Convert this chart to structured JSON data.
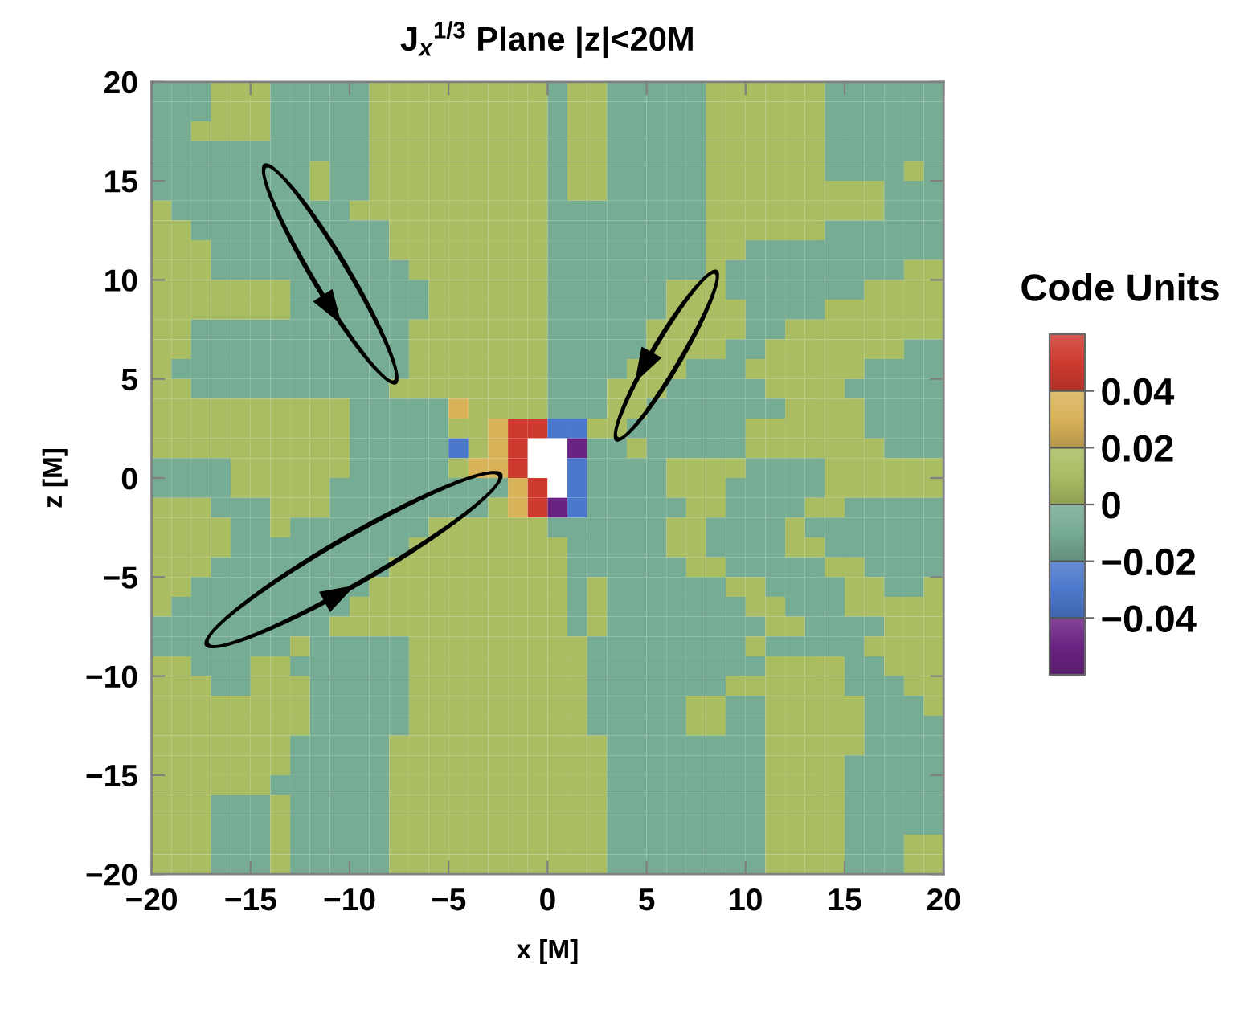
{
  "chart_data": {
    "type": "heatmap",
    "title": "J$_{x}$$^{1/3}$ Plane |z|<20M",
    "xlabel": "x [M]",
    "ylabel": "z [M]",
    "clabel": "Code Units",
    "x": [
      -19.5,
      -18.5,
      -17.5,
      -16.5,
      -15.5,
      -14.5,
      -13.5,
      -12.5,
      -11.5,
      -10.5,
      -9.5,
      -8.5,
      -7.5,
      -6.5,
      -5.5,
      -4.5,
      -3.5,
      -2.5,
      -1.5,
      -0.5,
      0.5,
      1.5,
      2.5,
      3.5,
      4.5,
      5.5,
      6.5,
      7.5,
      8.5,
      9.5,
      10.5,
      11.5,
      12.5,
      13.5,
      14.5,
      15.5,
      16.5,
      17.5,
      18.5,
      19.5
    ],
    "y": [
      19.5,
      18.5,
      17.5,
      16.5,
      15.5,
      14.5,
      13.5,
      12.5,
      11.5,
      10.5,
      9.5,
      8.5,
      7.5,
      6.5,
      5.5,
      4.5,
      3.5,
      2.5,
      1.5,
      0.5,
      -0.5,
      -1.5,
      -2.5,
      -3.5,
      -4.5,
      -5.5,
      -6.5,
      -7.5,
      -8.5,
      -9.5,
      -10.5,
      -11.5,
      -12.5,
      -13.5,
      -14.5,
      -15.5,
      -16.5,
      -17.5,
      -18.5,
      -19.5
    ],
    "xlim": [
      -20,
      20
    ],
    "ylim": [
      -20,
      20
    ],
    "xticks": [
      {
        "value": -20,
        "label": "−20"
      },
      {
        "value": -15,
        "label": "−15"
      },
      {
        "value": -10,
        "label": "−10"
      },
      {
        "value": -5,
        "label": "−5"
      },
      0,
      5,
      10,
      15,
      20
    ],
    "yticks": [
      {
        "value": -20,
        "label": "−20"
      },
      {
        "value": -15,
        "label": "−15"
      },
      {
        "value": -10,
        "label": "−10"
      },
      {
        "value": -5,
        "label": "−5"
      },
      0,
      5,
      10,
      15,
      20
    ],
    "clim": [
      -0.06,
      0.06
    ],
    "cticks": [
      0.04,
      0.02,
      0,
      {
        "value": -0.02,
        "label": "−0.02"
      },
      {
        "value": -0.04,
        "label": "−0.04"
      }
    ],
    "cells": [
      [
        -0.01,
        -0.01,
        -0.01,
        0.01,
        0.01,
        0.01,
        -0.01,
        -0.01,
        -0.01,
        -0.01,
        -0.01,
        0.01,
        0.01,
        0.01,
        0.01,
        0.01,
        0.01,
        0.01,
        0.01,
        0.01,
        -0.01,
        0.01,
        0.01,
        -0.01,
        -0.01,
        -0.01,
        -0.01,
        -0.01,
        0.01,
        0.01,
        0.01,
        0.01,
        0.01,
        0.01,
        -0.01,
        -0.01,
        -0.01,
        -0.01,
        -0.01,
        -0.01
      ],
      [
        -0.01,
        -0.01,
        -0.01,
        0.01,
        0.01,
        0.01,
        -0.01,
        -0.01,
        -0.01,
        -0.01,
        -0.01,
        0.01,
        0.01,
        0.01,
        0.01,
        0.01,
        0.01,
        0.01,
        0.01,
        0.01,
        -0.01,
        0.01,
        0.01,
        -0.01,
        -0.01,
        -0.01,
        -0.01,
        -0.01,
        0.01,
        0.01,
        0.01,
        0.01,
        0.01,
        0.01,
        -0.01,
        -0.01,
        -0.01,
        -0.01,
        -0.01,
        -0.01
      ],
      [
        -0.01,
        -0.01,
        0.01,
        0.01,
        0.01,
        0.01,
        -0.01,
        -0.01,
        -0.01,
        -0.01,
        -0.01,
        0.01,
        0.01,
        0.01,
        0.01,
        0.01,
        0.01,
        0.01,
        0.01,
        0.01,
        -0.01,
        0.01,
        0.01,
        -0.01,
        -0.01,
        -0.01,
        -0.01,
        -0.01,
        0.01,
        0.01,
        0.01,
        0.01,
        0.01,
        0.01,
        -0.01,
        -0.01,
        -0.01,
        -0.01,
        -0.01,
        -0.01
      ],
      [
        -0.01,
        -0.01,
        -0.01,
        -0.01,
        -0.01,
        -0.01,
        -0.01,
        -0.01,
        -0.01,
        -0.01,
        -0.01,
        0.01,
        0.01,
        0.01,
        0.01,
        0.01,
        0.01,
        0.01,
        0.01,
        0.01,
        -0.01,
        0.01,
        0.01,
        -0.01,
        -0.01,
        -0.01,
        -0.01,
        -0.01,
        0.01,
        0.01,
        0.01,
        0.01,
        0.01,
        0.01,
        -0.01,
        -0.01,
        -0.01,
        -0.01,
        -0.01,
        -0.01
      ],
      [
        -0.01,
        -0.01,
        -0.01,
        -0.01,
        -0.01,
        -0.01,
        -0.01,
        -0.01,
        0.01,
        -0.01,
        -0.01,
        0.01,
        0.01,
        0.01,
        0.01,
        0.01,
        0.01,
        0.01,
        0.01,
        0.01,
        -0.01,
        0.01,
        0.01,
        -0.01,
        -0.01,
        -0.01,
        -0.01,
        -0.01,
        0.01,
        0.01,
        0.01,
        0.01,
        0.01,
        0.01,
        -0.01,
        -0.01,
        -0.01,
        -0.01,
        0.01,
        -0.01
      ],
      [
        -0.01,
        -0.01,
        -0.01,
        -0.01,
        -0.01,
        -0.01,
        -0.01,
        -0.01,
        0.01,
        -0.01,
        -0.01,
        0.01,
        0.01,
        0.01,
        0.01,
        0.01,
        0.01,
        0.01,
        0.01,
        0.01,
        -0.01,
        0.01,
        0.01,
        -0.01,
        -0.01,
        -0.01,
        -0.01,
        -0.01,
        0.01,
        0.01,
        0.01,
        0.01,
        0.01,
        0.01,
        0.01,
        0.01,
        0.01,
        -0.01,
        -0.01,
        -0.01
      ],
      [
        0.01,
        -0.01,
        -0.01,
        -0.01,
        -0.01,
        -0.01,
        -0.01,
        -0.01,
        -0.01,
        -0.01,
        0.01,
        0.01,
        0.01,
        0.01,
        0.01,
        0.01,
        0.01,
        0.01,
        0.01,
        0.01,
        -0.01,
        -0.01,
        -0.01,
        -0.01,
        -0.01,
        -0.01,
        -0.01,
        -0.01,
        0.01,
        0.01,
        0.01,
        0.01,
        0.01,
        0.01,
        0.01,
        0.01,
        0.01,
        -0.01,
        -0.01,
        -0.01
      ],
      [
        0.01,
        0.01,
        -0.01,
        -0.01,
        -0.01,
        -0.01,
        -0.01,
        -0.01,
        -0.01,
        -0.01,
        -0.01,
        -0.01,
        0.01,
        0.01,
        0.01,
        0.01,
        0.01,
        0.01,
        0.01,
        0.01,
        -0.01,
        -0.01,
        -0.01,
        -0.01,
        -0.01,
        -0.01,
        -0.01,
        -0.01,
        0.01,
        0.01,
        0.01,
        0.01,
        0.01,
        0.01,
        -0.01,
        -0.01,
        -0.01,
        -0.01,
        -0.01,
        -0.01
      ],
      [
        0.01,
        0.01,
        0.01,
        -0.01,
        -0.01,
        -0.01,
        -0.01,
        -0.01,
        -0.01,
        -0.01,
        -0.01,
        -0.01,
        0.01,
        0.01,
        0.01,
        0.01,
        0.01,
        0.01,
        0.01,
        0.01,
        -0.01,
        -0.01,
        -0.01,
        -0.01,
        -0.01,
        -0.01,
        -0.01,
        -0.01,
        0.01,
        0.01,
        -0.01,
        -0.01,
        -0.01,
        -0.01,
        -0.01,
        -0.01,
        -0.01,
        -0.01,
        -0.01,
        -0.01
      ],
      [
        0.01,
        0.01,
        0.01,
        -0.01,
        -0.01,
        -0.01,
        -0.01,
        -0.01,
        -0.01,
        -0.01,
        -0.01,
        -0.01,
        -0.01,
        0.01,
        0.01,
        0.01,
        0.01,
        0.01,
        0.01,
        0.01,
        -0.01,
        -0.01,
        -0.01,
        -0.01,
        -0.01,
        -0.01,
        -0.01,
        -0.01,
        0.01,
        -0.01,
        -0.01,
        -0.01,
        -0.01,
        -0.01,
        -0.01,
        -0.01,
        -0.01,
        -0.01,
        0.01,
        0.01
      ],
      [
        0.01,
        0.01,
        0.01,
        0.01,
        0.01,
        0.01,
        0.01,
        -0.01,
        -0.01,
        -0.01,
        -0.01,
        -0.01,
        -0.01,
        -0.01,
        0.01,
        0.01,
        0.01,
        0.01,
        0.01,
        0.01,
        -0.01,
        -0.01,
        -0.01,
        -0.01,
        -0.01,
        -0.01,
        0.01,
        0.01,
        0.01,
        -0.01,
        -0.01,
        -0.01,
        -0.01,
        -0.01,
        -0.01,
        -0.01,
        0.01,
        0.01,
        0.01,
        0.01
      ],
      [
        0.01,
        0.01,
        0.01,
        0.01,
        0.01,
        0.01,
        0.01,
        -0.01,
        -0.01,
        -0.01,
        -0.01,
        -0.01,
        -0.01,
        -0.01,
        0.01,
        0.01,
        0.01,
        0.01,
        0.01,
        0.01,
        -0.01,
        -0.01,
        -0.01,
        -0.01,
        -0.01,
        -0.01,
        0.01,
        0.01,
        0.01,
        0.01,
        -0.01,
        -0.01,
        -0.01,
        -0.01,
        0.01,
        0.01,
        0.01,
        0.01,
        0.01,
        0.01
      ],
      [
        0.01,
        0.01,
        -0.01,
        -0.01,
        -0.01,
        -0.01,
        -0.01,
        -0.01,
        -0.01,
        -0.01,
        -0.01,
        -0.01,
        -0.01,
        0.01,
        0.01,
        0.01,
        0.01,
        0.01,
        0.01,
        0.01,
        -0.01,
        -0.01,
        -0.01,
        -0.01,
        -0.01,
        0.01,
        0.01,
        0.01,
        0.01,
        0.01,
        -0.01,
        -0.01,
        0.01,
        0.01,
        0.01,
        0.01,
        0.01,
        0.01,
        0.01,
        0.01
      ],
      [
        0.01,
        0.01,
        -0.01,
        -0.01,
        -0.01,
        -0.01,
        -0.01,
        -0.01,
        -0.01,
        -0.01,
        -0.01,
        -0.01,
        -0.01,
        0.01,
        0.01,
        0.01,
        0.01,
        0.01,
        0.01,
        0.01,
        -0.01,
        -0.01,
        -0.01,
        -0.01,
        -0.01,
        0.01,
        0.01,
        0.01,
        0.01,
        -0.01,
        -0.01,
        0.01,
        0.01,
        0.01,
        0.01,
        0.01,
        0.01,
        0.01,
        -0.01,
        -0.01
      ],
      [
        0.01,
        -0.01,
        -0.01,
        -0.01,
        -0.01,
        -0.01,
        -0.01,
        -0.01,
        -0.01,
        -0.01,
        -0.01,
        -0.01,
        -0.01,
        0.01,
        0.01,
        0.01,
        0.01,
        0.01,
        0.01,
        0.01,
        -0.01,
        -0.01,
        -0.01,
        -0.01,
        0.01,
        0.01,
        0.01,
        -0.01,
        -0.01,
        -0.01,
        0.01,
        0.01,
        0.01,
        0.01,
        0.01,
        0.01,
        -0.01,
        -0.01,
        -0.01,
        -0.01
      ],
      [
        0.01,
        0.01,
        -0.01,
        -0.01,
        -0.01,
        -0.01,
        -0.01,
        -0.01,
        -0.01,
        -0.01,
        -0.01,
        -0.01,
        0.01,
        0.01,
        0.01,
        0.01,
        0.01,
        0.01,
        0.01,
        0.01,
        -0.01,
        -0.01,
        -0.01,
        0.01,
        0.01,
        0.01,
        -0.01,
        -0.01,
        -0.01,
        -0.01,
        -0.01,
        0.01,
        0.01,
        0.01,
        0.01,
        -0.01,
        -0.01,
        -0.01,
        -0.01,
        -0.01
      ],
      [
        0.01,
        0.01,
        0.01,
        0.01,
        0.01,
        0.01,
        0.01,
        0.01,
        0.01,
        0.01,
        -0.01,
        -0.01,
        -0.01,
        -0.01,
        -0.01,
        0.03,
        0.01,
        0.01,
        0.01,
        0.01,
        -0.01,
        -0.01,
        -0.01,
        0.01,
        0.01,
        -0.01,
        -0.01,
        -0.01,
        -0.01,
        -0.01,
        -0.01,
        -0.01,
        0.01,
        0.01,
        0.01,
        0.01,
        -0.01,
        -0.01,
        -0.01,
        -0.01
      ],
      [
        0.01,
        0.01,
        0.01,
        0.01,
        0.01,
        0.01,
        0.01,
        0.01,
        0.01,
        0.01,
        -0.01,
        -0.01,
        -0.01,
        -0.01,
        -0.01,
        0.01,
        0.01,
        0.03,
        0.05,
        0.05,
        -0.03,
        -0.03,
        0.01,
        0.01,
        -0.01,
        -0.01,
        -0.01,
        -0.01,
        -0.01,
        -0.01,
        0.01,
        0.01,
        0.01,
        0.01,
        0.01,
        0.01,
        -0.01,
        -0.01,
        -0.01,
        -0.01
      ],
      [
        0.01,
        0.01,
        0.01,
        0.01,
        0.01,
        0.01,
        0.01,
        0.01,
        0.01,
        0.01,
        -0.01,
        -0.01,
        -0.01,
        -0.01,
        -0.01,
        -0.03,
        0.01,
        0.03,
        0.05,
        null,
        null,
        -0.05,
        -0.01,
        -0.01,
        0.01,
        -0.01,
        -0.01,
        -0.01,
        -0.01,
        -0.01,
        0.01,
        0.01,
        0.01,
        0.01,
        0.01,
        0.01,
        0.01,
        -0.01,
        -0.01,
        -0.01
      ],
      [
        -0.01,
        -0.01,
        -0.01,
        -0.01,
        0.01,
        0.01,
        0.01,
        0.01,
        0.01,
        0.01,
        -0.01,
        -0.01,
        -0.01,
        -0.01,
        -0.01,
        0.01,
        0.03,
        0.03,
        0.05,
        null,
        null,
        -0.03,
        -0.01,
        -0.01,
        -0.01,
        -0.01,
        0.01,
        0.01,
        0.01,
        0.01,
        -0.01,
        -0.01,
        -0.01,
        -0.01,
        0.01,
        0.01,
        0.01,
        0.01,
        0.01,
        0.01
      ],
      [
        -0.01,
        -0.01,
        -0.01,
        -0.01,
        0.01,
        0.01,
        0.01,
        0.01,
        0.01,
        -0.01,
        -0.01,
        -0.01,
        -0.01,
        -0.01,
        -0.01,
        -0.01,
        -0.01,
        -0.01,
        0.03,
        0.05,
        null,
        -0.03,
        -0.01,
        -0.01,
        -0.01,
        -0.01,
        0.01,
        0.01,
        0.01,
        -0.01,
        -0.01,
        -0.01,
        -0.01,
        -0.01,
        0.01,
        0.01,
        0.01,
        0.01,
        0.01,
        0.01
      ],
      [
        0.01,
        0.01,
        0.01,
        -0.01,
        -0.01,
        -0.01,
        0.01,
        0.01,
        0.01,
        -0.01,
        -0.01,
        -0.01,
        -0.01,
        -0.01,
        -0.01,
        -0.01,
        -0.01,
        0.01,
        0.03,
        0.05,
        -0.05,
        -0.03,
        -0.01,
        -0.01,
        -0.01,
        -0.01,
        -0.01,
        0.01,
        0.01,
        -0.01,
        -0.01,
        -0.01,
        -0.01,
        0.01,
        0.01,
        -0.01,
        -0.01,
        -0.01,
        -0.01,
        -0.01
      ],
      [
        0.01,
        0.01,
        0.01,
        0.01,
        -0.01,
        -0.01,
        0.01,
        -0.01,
        -0.01,
        -0.01,
        -0.01,
        -0.01,
        -0.01,
        -0.01,
        0.01,
        0.01,
        0.01,
        0.01,
        0.01,
        0.01,
        -0.01,
        -0.01,
        -0.01,
        -0.01,
        -0.01,
        -0.01,
        0.01,
        0.01,
        -0.01,
        -0.01,
        -0.01,
        -0.01,
        0.01,
        -0.01,
        -0.01,
        -0.01,
        -0.01,
        -0.01,
        -0.01,
        -0.01
      ],
      [
        0.01,
        0.01,
        0.01,
        0.01,
        -0.01,
        -0.01,
        -0.01,
        -0.01,
        -0.01,
        -0.01,
        -0.01,
        -0.01,
        -0.01,
        0.01,
        0.01,
        0.01,
        0.01,
        0.01,
        0.01,
        0.01,
        0.01,
        -0.01,
        -0.01,
        -0.01,
        -0.01,
        -0.01,
        0.01,
        0.01,
        -0.01,
        -0.01,
        -0.01,
        -0.01,
        0.01,
        0.01,
        -0.01,
        -0.01,
        -0.01,
        -0.01,
        -0.01,
        -0.01
      ],
      [
        0.01,
        0.01,
        0.01,
        -0.01,
        -0.01,
        -0.01,
        -0.01,
        -0.01,
        -0.01,
        -0.01,
        -0.01,
        -0.01,
        0.01,
        0.01,
        0.01,
        0.01,
        0.01,
        0.01,
        0.01,
        0.01,
        0.01,
        -0.01,
        -0.01,
        -0.01,
        -0.01,
        -0.01,
        -0.01,
        0.01,
        0.01,
        -0.01,
        -0.01,
        -0.01,
        -0.01,
        -0.01,
        0.01,
        0.01,
        -0.01,
        -0.01,
        -0.01,
        -0.01
      ],
      [
        0.01,
        0.01,
        -0.01,
        -0.01,
        -0.01,
        -0.01,
        -0.01,
        -0.01,
        -0.01,
        -0.01,
        -0.01,
        0.01,
        0.01,
        0.01,
        0.01,
        0.01,
        0.01,
        0.01,
        0.01,
        0.01,
        0.01,
        -0.01,
        0.01,
        -0.01,
        -0.01,
        -0.01,
        -0.01,
        -0.01,
        -0.01,
        0.01,
        0.01,
        -0.01,
        -0.01,
        -0.01,
        -0.01,
        0.01,
        0.01,
        -0.01,
        -0.01,
        0.01
      ],
      [
        0.01,
        -0.01,
        -0.01,
        -0.01,
        -0.01,
        -0.01,
        -0.01,
        -0.01,
        -0.01,
        -0.01,
        0.01,
        0.01,
        0.01,
        0.01,
        0.01,
        0.01,
        0.01,
        0.01,
        0.01,
        0.01,
        0.01,
        -0.01,
        0.01,
        -0.01,
        -0.01,
        -0.01,
        -0.01,
        -0.01,
        -0.01,
        -0.01,
        0.01,
        0.01,
        -0.01,
        -0.01,
        -0.01,
        0.01,
        0.01,
        0.01,
        0.01,
        0.01
      ],
      [
        -0.01,
        -0.01,
        -0.01,
        -0.01,
        -0.01,
        -0.01,
        -0.01,
        -0.01,
        -0.01,
        0.01,
        0.01,
        0.01,
        0.01,
        0.01,
        0.01,
        0.01,
        0.01,
        0.01,
        0.01,
        0.01,
        0.01,
        -0.01,
        0.01,
        -0.01,
        -0.01,
        -0.01,
        -0.01,
        -0.01,
        -0.01,
        -0.01,
        -0.01,
        0.01,
        0.01,
        -0.01,
        -0.01,
        -0.01,
        -0.01,
        0.01,
        0.01,
        0.01
      ],
      [
        -0.01,
        -0.01,
        -0.01,
        -0.01,
        -0.01,
        -0.01,
        -0.01,
        0.01,
        -0.01,
        -0.01,
        -0.01,
        -0.01,
        -0.01,
        0.01,
        0.01,
        0.01,
        0.01,
        0.01,
        0.01,
        0.01,
        0.01,
        0.01,
        -0.01,
        -0.01,
        -0.01,
        -0.01,
        -0.01,
        -0.01,
        -0.01,
        -0.01,
        0.01,
        -0.01,
        -0.01,
        -0.01,
        -0.01,
        -0.01,
        0.01,
        0.01,
        0.01,
        0.01
      ],
      [
        0.01,
        0.01,
        -0.01,
        -0.01,
        -0.01,
        0.01,
        0.01,
        -0.01,
        -0.01,
        -0.01,
        -0.01,
        -0.01,
        -0.01,
        0.01,
        0.01,
        0.01,
        0.01,
        0.01,
        0.01,
        0.01,
        0.01,
        0.01,
        -0.01,
        -0.01,
        -0.01,
        -0.01,
        -0.01,
        -0.01,
        -0.01,
        -0.01,
        -0.01,
        0.01,
        0.01,
        0.01,
        0.01,
        -0.01,
        -0.01,
        0.01,
        0.01,
        0.01
      ],
      [
        0.01,
        0.01,
        0.01,
        -0.01,
        -0.01,
        0.01,
        0.01,
        0.01,
        -0.01,
        -0.01,
        -0.01,
        -0.01,
        -0.01,
        0.01,
        0.01,
        0.01,
        0.01,
        0.01,
        0.01,
        0.01,
        0.01,
        0.01,
        -0.01,
        -0.01,
        -0.01,
        -0.01,
        -0.01,
        -0.01,
        -0.01,
        0.01,
        0.01,
        0.01,
        0.01,
        0.01,
        0.01,
        -0.01,
        -0.01,
        -0.01,
        0.01,
        0.01
      ],
      [
        0.01,
        0.01,
        0.01,
        0.01,
        0.01,
        0.01,
        0.01,
        0.01,
        -0.01,
        -0.01,
        -0.01,
        -0.01,
        -0.01,
        0.01,
        0.01,
        0.01,
        0.01,
        0.01,
        0.01,
        0.01,
        0.01,
        0.01,
        -0.01,
        -0.01,
        -0.01,
        -0.01,
        -0.01,
        0.01,
        0.01,
        -0.01,
        -0.01,
        0.01,
        0.01,
        0.01,
        0.01,
        0.01,
        -0.01,
        -0.01,
        -0.01,
        0.01
      ],
      [
        0.01,
        0.01,
        0.01,
        0.01,
        0.01,
        0.01,
        0.01,
        0.01,
        -0.01,
        -0.01,
        -0.01,
        -0.01,
        -0.01,
        0.01,
        0.01,
        0.01,
        0.01,
        0.01,
        0.01,
        0.01,
        0.01,
        0.01,
        -0.01,
        -0.01,
        -0.01,
        -0.01,
        -0.01,
        0.01,
        0.01,
        -0.01,
        -0.01,
        0.01,
        0.01,
        0.01,
        0.01,
        0.01,
        -0.01,
        -0.01,
        -0.01,
        -0.01
      ],
      [
        0.01,
        0.01,
        0.01,
        0.01,
        0.01,
        0.01,
        0.01,
        -0.01,
        -0.01,
        -0.01,
        -0.01,
        -0.01,
        0.01,
        0.01,
        0.01,
        0.01,
        0.01,
        0.01,
        0.01,
        0.01,
        0.01,
        0.01,
        0.01,
        -0.01,
        -0.01,
        -0.01,
        -0.01,
        -0.01,
        -0.01,
        -0.01,
        -0.01,
        0.01,
        0.01,
        0.01,
        0.01,
        0.01,
        -0.01,
        -0.01,
        -0.01,
        -0.01
      ],
      [
        0.01,
        0.01,
        0.01,
        0.01,
        0.01,
        0.01,
        0.01,
        -0.01,
        -0.01,
        -0.01,
        -0.01,
        -0.01,
        0.01,
        0.01,
        0.01,
        0.01,
        0.01,
        0.01,
        0.01,
        0.01,
        0.01,
        0.01,
        0.01,
        -0.01,
        -0.01,
        -0.01,
        -0.01,
        -0.01,
        -0.01,
        -0.01,
        -0.01,
        0.01,
        0.01,
        0.01,
        0.01,
        -0.01,
        -0.01,
        -0.01,
        -0.01,
        -0.01
      ],
      [
        0.01,
        0.01,
        0.01,
        0.01,
        0.01,
        0.01,
        -0.01,
        -0.01,
        -0.01,
        -0.01,
        -0.01,
        -0.01,
        0.01,
        0.01,
        0.01,
        0.01,
        0.01,
        0.01,
        0.01,
        0.01,
        0.01,
        0.01,
        0.01,
        -0.01,
        -0.01,
        -0.01,
        -0.01,
        -0.01,
        -0.01,
        -0.01,
        -0.01,
        0.01,
        0.01,
        0.01,
        0.01,
        -0.01,
        -0.01,
        -0.01,
        -0.01,
        -0.01
      ],
      [
        0.01,
        0.01,
        0.01,
        -0.01,
        -0.01,
        -0.01,
        0.01,
        -0.01,
        -0.01,
        -0.01,
        -0.01,
        -0.01,
        0.01,
        0.01,
        0.01,
        0.01,
        0.01,
        0.01,
        0.01,
        0.01,
        0.01,
        0.01,
        0.01,
        -0.01,
        -0.01,
        -0.01,
        -0.01,
        -0.01,
        -0.01,
        -0.01,
        -0.01,
        0.01,
        0.01,
        0.01,
        0.01,
        -0.01,
        -0.01,
        -0.01,
        -0.01,
        -0.01
      ],
      [
        0.01,
        0.01,
        0.01,
        -0.01,
        -0.01,
        -0.01,
        0.01,
        -0.01,
        -0.01,
        -0.01,
        -0.01,
        -0.01,
        0.01,
        0.01,
        0.01,
        0.01,
        0.01,
        0.01,
        0.01,
        0.01,
        0.01,
        0.01,
        0.01,
        -0.01,
        -0.01,
        -0.01,
        -0.01,
        -0.01,
        -0.01,
        -0.01,
        -0.01,
        0.01,
        0.01,
        0.01,
        0.01,
        -0.01,
        -0.01,
        -0.01,
        -0.01,
        -0.01
      ],
      [
        0.01,
        0.01,
        0.01,
        -0.01,
        -0.01,
        -0.01,
        0.01,
        -0.01,
        -0.01,
        -0.01,
        -0.01,
        -0.01,
        0.01,
        0.01,
        0.01,
        0.01,
        0.01,
        0.01,
        0.01,
        0.01,
        0.01,
        0.01,
        0.01,
        -0.01,
        -0.01,
        -0.01,
        -0.01,
        -0.01,
        -0.01,
        -0.01,
        -0.01,
        0.01,
        0.01,
        0.01,
        0.01,
        -0.01,
        -0.01,
        -0.01,
        0.01,
        0.01
      ],
      [
        0.01,
        0.01,
        0.01,
        -0.01,
        -0.01,
        -0.01,
        0.01,
        -0.01,
        -0.01,
        -0.01,
        -0.01,
        -0.01,
        0.01,
        0.01,
        0.01,
        0.01,
        0.01,
        0.01,
        0.01,
        0.01,
        0.01,
        0.01,
        0.01,
        -0.01,
        -0.01,
        -0.01,
        -0.01,
        -0.01,
        -0.01,
        -0.01,
        -0.01,
        0.01,
        0.01,
        0.01,
        0.01,
        -0.01,
        -0.01,
        -0.01,
        0.01,
        0.01
      ]
    ]
  }
}
